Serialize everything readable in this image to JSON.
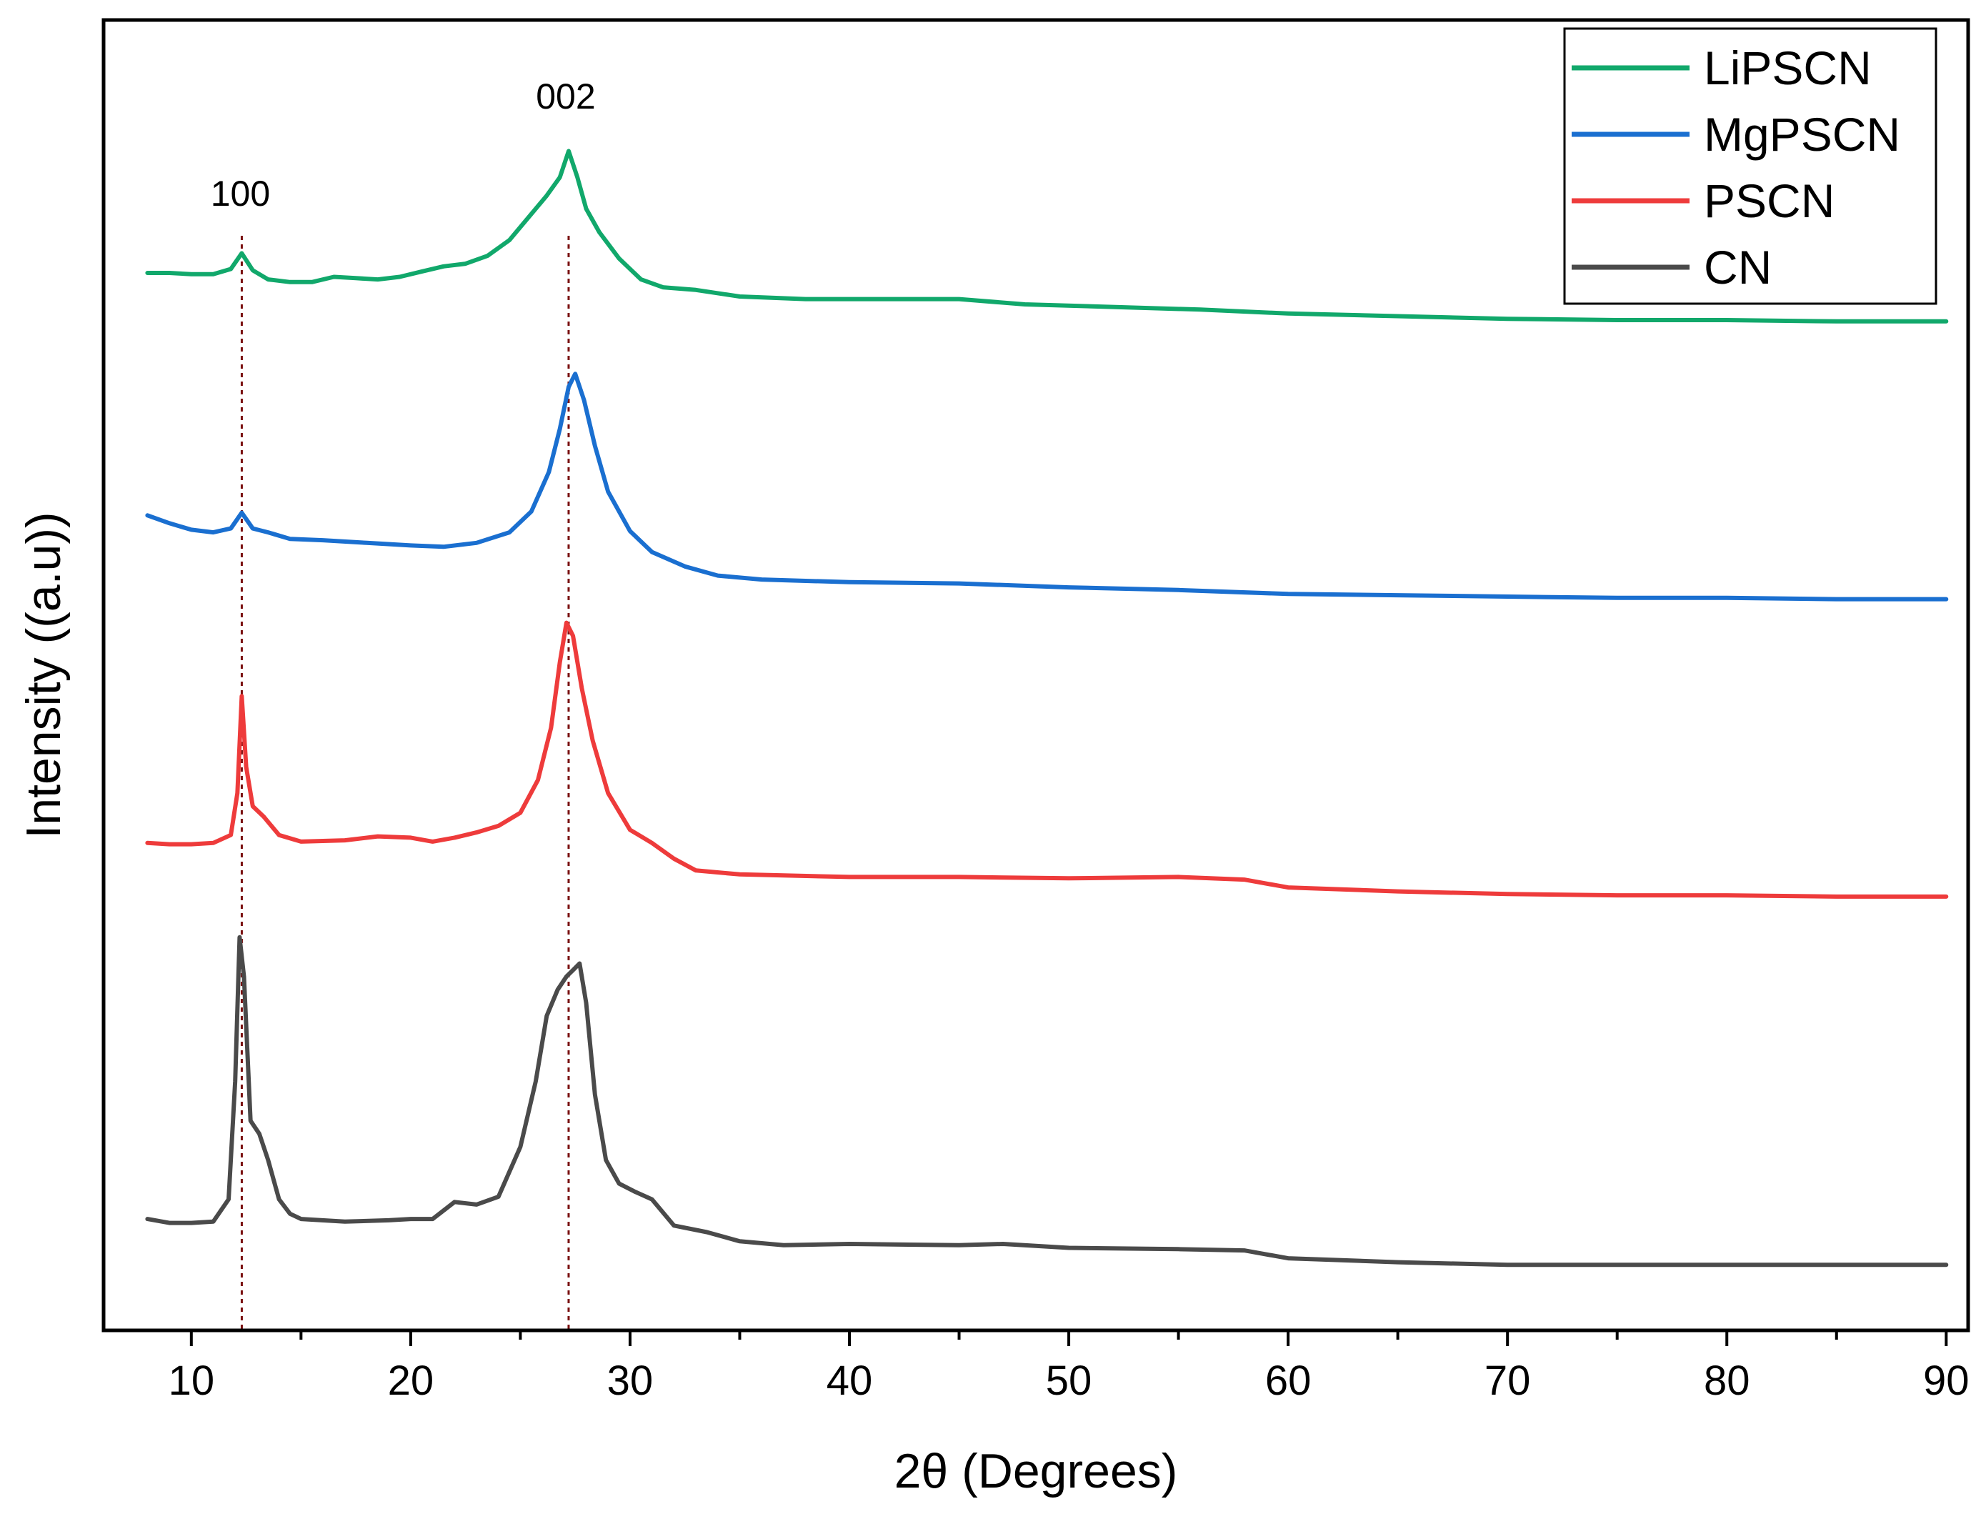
{
  "chart_data": {
    "type": "line",
    "title": "",
    "xlabel": "2θ (Degrees)",
    "ylabel": "Intensity ((a.u))",
    "xlim": [
      6,
      91
    ],
    "ylim": [
      0,
      1
    ],
    "x_ticks": [
      10,
      20,
      30,
      40,
      50,
      60,
      70,
      80,
      90
    ],
    "x_tick_labels": [
      "10",
      "20",
      "30",
      "40",
      "50",
      "60",
      "70",
      "80",
      "90"
    ],
    "y_ticks_shown": false,
    "legend_position": "top-right",
    "reference_lines": [
      {
        "x": 12.3,
        "label": "100",
        "color": "#7a1010"
      },
      {
        "x": 27.2,
        "label": "002",
        "color": "#7a1010"
      }
    ],
    "series": [
      {
        "name": "LiPSCN",
        "color": "#11a86b",
        "x": [
          8,
          9,
          10,
          11,
          11.8,
          12.3,
          12.8,
          13.5,
          14.5,
          15.5,
          16.5,
          17.5,
          18.5,
          19.5,
          20.5,
          21.5,
          22.5,
          23.5,
          24.5,
          25.5,
          26.2,
          26.8,
          27.2,
          27.6,
          28,
          28.6,
          29.5,
          30.5,
          31.5,
          33,
          35,
          38,
          42,
          45,
          48,
          52,
          56,
          60,
          65,
          70,
          75,
          80,
          85,
          90
        ],
        "y": [
          0.807,
          0.807,
          0.806,
          0.806,
          0.81,
          0.822,
          0.809,
          0.802,
          0.8,
          0.8,
          0.804,
          0.803,
          0.802,
          0.804,
          0.808,
          0.812,
          0.814,
          0.82,
          0.832,
          0.852,
          0.866,
          0.88,
          0.9,
          0.88,
          0.856,
          0.838,
          0.818,
          0.802,
          0.796,
          0.794,
          0.789,
          0.787,
          0.787,
          0.787,
          0.783,
          0.781,
          0.779,
          0.776,
          0.774,
          0.772,
          0.771,
          0.771,
          0.77,
          0.77
        ]
      },
      {
        "name": "MgPSCN",
        "color": "#1a6fd0",
        "x": [
          8,
          9,
          10,
          11,
          11.8,
          12.3,
          12.8,
          13.5,
          14.5,
          16,
          18,
          20,
          21.5,
          23,
          24.5,
          25.5,
          26.3,
          26.8,
          27.2,
          27.5,
          27.9,
          28.4,
          29,
          30,
          31,
          32.5,
          34,
          36,
          40,
          45,
          50,
          55,
          60,
          65,
          70,
          75,
          80,
          85,
          90
        ],
        "y": [
          0.622,
          0.616,
          0.611,
          0.609,
          0.612,
          0.624,
          0.612,
          0.609,
          0.604,
          0.603,
          0.601,
          0.599,
          0.598,
          0.601,
          0.609,
          0.625,
          0.655,
          0.688,
          0.72,
          0.73,
          0.71,
          0.675,
          0.64,
          0.61,
          0.594,
          0.583,
          0.576,
          0.573,
          0.571,
          0.57,
          0.567,
          0.565,
          0.562,
          0.561,
          0.56,
          0.559,
          0.559,
          0.558,
          0.558
        ]
      },
      {
        "name": "PSCN",
        "color": "#ee3b3b",
        "x": [
          8,
          9,
          10,
          11,
          11.8,
          12.1,
          12.3,
          12.5,
          12.8,
          13.3,
          14,
          15,
          17,
          18.5,
          20,
          21,
          22,
          23,
          24,
          25,
          25.8,
          26.4,
          26.8,
          27.1,
          27.4,
          27.8,
          28.3,
          29,
          30,
          31,
          32,
          33,
          35,
          40,
          45,
          50,
          55,
          58,
          60,
          65,
          70,
          75,
          80,
          85,
          90
        ],
        "y": [
          0.372,
          0.371,
          0.371,
          0.372,
          0.378,
          0.41,
          0.484,
          0.43,
          0.4,
          0.392,
          0.378,
          0.373,
          0.374,
          0.377,
          0.376,
          0.373,
          0.376,
          0.38,
          0.385,
          0.395,
          0.42,
          0.46,
          0.51,
          0.54,
          0.53,
          0.49,
          0.45,
          0.41,
          0.382,
          0.372,
          0.36,
          0.351,
          0.348,
          0.346,
          0.346,
          0.345,
          0.346,
          0.344,
          0.338,
          0.335,
          0.333,
          0.332,
          0.332,
          0.331,
          0.331
        ]
      },
      {
        "name": "CN",
        "color": "#4a4a4a",
        "x": [
          8,
          9,
          10,
          11,
          11.7,
          12.0,
          12.2,
          12.4,
          12.7,
          13.1,
          13.5,
          14,
          14.5,
          15,
          17,
          19,
          20,
          21,
          22,
          23,
          24,
          25,
          25.7,
          26.2,
          26.7,
          27.1,
          27.4,
          27.7,
          28.0,
          28.4,
          28.9,
          29.5,
          30.2,
          31,
          32,
          33.5,
          35,
          37,
          40,
          45,
          47,
          50,
          55,
          58,
          60,
          65,
          70,
          75,
          80,
          85,
          90
        ],
        "y": [
          0.085,
          0.082,
          0.082,
          0.083,
          0.1,
          0.19,
          0.3,
          0.27,
          0.16,
          0.15,
          0.13,
          0.1,
          0.089,
          0.085,
          0.083,
          0.084,
          0.085,
          0.085,
          0.098,
          0.096,
          0.102,
          0.14,
          0.19,
          0.24,
          0.26,
          0.27,
          0.275,
          0.28,
          0.25,
          0.18,
          0.13,
          0.112,
          0.106,
          0.1,
          0.08,
          0.075,
          0.068,
          0.065,
          0.066,
          0.065,
          0.066,
          0.063,
          0.062,
          0.061,
          0.055,
          0.052,
          0.05,
          0.05,
          0.05,
          0.05,
          0.05
        ]
      }
    ]
  }
}
